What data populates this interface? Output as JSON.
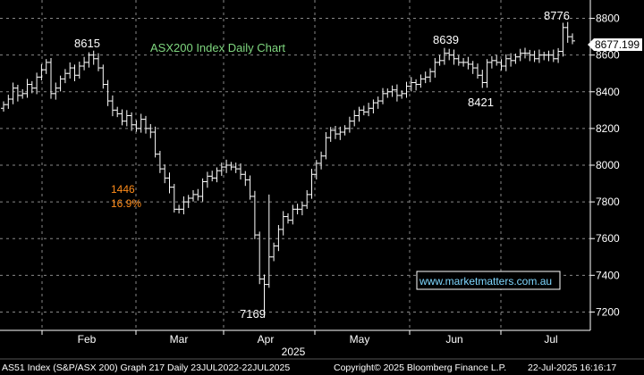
{
  "chart_data": {
    "type": "ohlc",
    "title": "ASX200 Index Daily Chart",
    "title_color": "#7fd77f",
    "year_label": "2025",
    "x_labels": [
      "Feb",
      "Mar",
      "Apr",
      "May",
      "Jun",
      "Jul"
    ],
    "ylim": [
      7100,
      8900
    ],
    "yticks": [
      7200,
      7400,
      7600,
      7800,
      8000,
      8200,
      8400,
      8600,
      8800
    ],
    "grid": true,
    "last_price": "8677.199",
    "watermark": "www.marketmatters.com.au",
    "watermark_color": "#7fd7ff",
    "annotations": {
      "feb_high": "8615",
      "apr_low": "7169",
      "jun_high": "8639",
      "jun_low": "8421",
      "jul_high": "8776",
      "drop_points": "1446",
      "drop_pct": "16.9%",
      "drop_color": "#ff8c1a"
    },
    "closes": [
      8330,
      8360,
      8420,
      8380,
      8390,
      8440,
      8420,
      8480,
      8520,
      8560,
      8390,
      8420,
      8470,
      8500,
      8530,
      8490,
      8540,
      8560,
      8600,
      8580,
      8530,
      8440,
      8350,
      8300,
      8280,
      8240,
      8270,
      8220,
      8200,
      8250,
      8200,
      8180,
      8060,
      7980,
      7930,
      7880,
      7760,
      7760,
      7800,
      7820,
      7840,
      7830,
      7910,
      7940,
      7930,
      7970,
      7990,
      8000,
      7990,
      7980,
      7950,
      7920,
      7830,
      7620,
      7380,
      7350,
      7500,
      7560,
      7650,
      7720,
      7700,
      7760,
      7760,
      7780,
      7840,
      7950,
      8010,
      8050,
      8150,
      8190,
      8170,
      8180,
      8200,
      8240,
      8270,
      8300,
      8290,
      8310,
      8340,
      8350,
      8390,
      8400,
      8410,
      8380,
      8390,
      8430,
      8450,
      8440,
      8470,
      8480,
      8510,
      8560,
      8570,
      8610,
      8600,
      8580,
      8560,
      8560,
      8550,
      8530,
      8490,
      8450,
      8560,
      8570,
      8560,
      8540,
      8580,
      8570,
      8590,
      8610,
      8610,
      8600,
      8580,
      8600,
      8600,
      8600,
      8580,
      8620,
      8750,
      8700,
      8677
    ]
  },
  "footer": {
    "left": "AS51 Index (S&P/ASX 200) Graph 217  Daily 23JUL2022-22JUL2025",
    "copyright": "Copyright© 2025 Bloomberg Finance L.P.",
    "timestamp": "22-Jul-2025 16:16:17"
  }
}
